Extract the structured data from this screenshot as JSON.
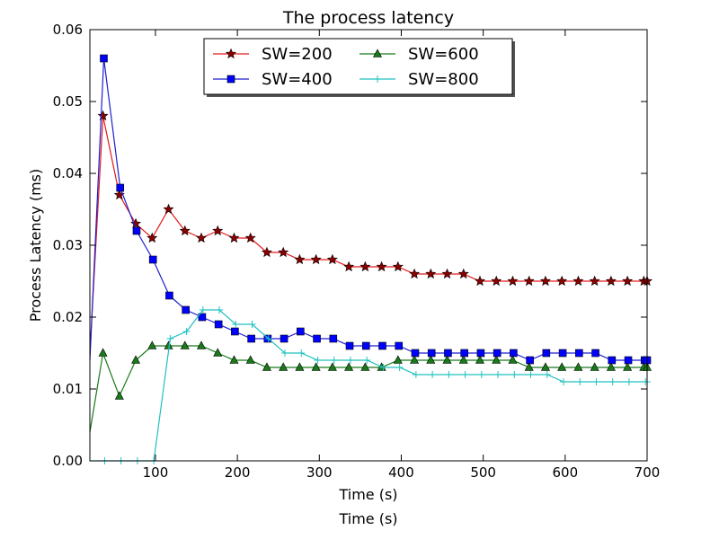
{
  "chart_data": {
    "type": "line",
    "title": "The process latency",
    "xlabel": "Time (s)",
    "ylabel": "Process Latency (ms)",
    "footer_text": "Time (s)",
    "xlim": [
      20,
      700
    ],
    "ylim": [
      0,
      0.06
    ],
    "x_ticks": [
      100,
      200,
      300,
      400,
      500,
      600,
      700
    ],
    "x_tick_labels": [
      "100",
      "200",
      "300",
      "400",
      "500",
      "600",
      "700"
    ],
    "y_ticks": [
      0,
      0.01,
      0.02,
      0.03,
      0.04,
      0.05,
      0.06
    ],
    "y_tick_labels": [
      "0.00",
      "0.01",
      "0.02",
      "0.03",
      "0.04",
      "0.05",
      "0.06"
    ],
    "grid": false,
    "legend_position": "top-center",
    "series": [
      {
        "name": "SW=200",
        "color": "#e41a1c",
        "marker_fill": "#8b0000",
        "marker": "star",
        "x": [
          20,
          36,
          56,
          76,
          96,
          116,
          136,
          156,
          176,
          196,
          216,
          236,
          256,
          276,
          296,
          316,
          336,
          356,
          376,
          396,
          416,
          436,
          456,
          476,
          496,
          516,
          536,
          556,
          576,
          596,
          616,
          636,
          656,
          676,
          696,
          700
        ],
        "y": [
          0.015,
          0.048,
          0.037,
          0.033,
          0.031,
          0.035,
          0.032,
          0.031,
          0.032,
          0.031,
          0.031,
          0.029,
          0.029,
          0.028,
          0.028,
          0.028,
          0.027,
          0.027,
          0.027,
          0.027,
          0.026,
          0.026,
          0.026,
          0.026,
          0.025,
          0.025,
          0.025,
          0.025,
          0.025,
          0.025,
          0.025,
          0.025,
          0.025,
          0.025,
          0.025,
          0.025
        ]
      },
      {
        "name": "SW=400",
        "color": "#1f1fd1",
        "marker_fill": "#0000ff",
        "marker": "square",
        "x": [
          20,
          37,
          57,
          77,
          97,
          117,
          137,
          157,
          177,
          197,
          217,
          237,
          257,
          277,
          297,
          317,
          337,
          357,
          377,
          397,
          417,
          437,
          457,
          477,
          497,
          517,
          537,
          557,
          577,
          597,
          617,
          637,
          657,
          677,
          697,
          700
        ],
        "y": [
          0.014,
          0.056,
          0.038,
          0.032,
          0.028,
          0.023,
          0.021,
          0.02,
          0.019,
          0.018,
          0.017,
          0.017,
          0.017,
          0.018,
          0.017,
          0.017,
          0.016,
          0.016,
          0.016,
          0.016,
          0.015,
          0.015,
          0.015,
          0.015,
          0.015,
          0.015,
          0.015,
          0.014,
          0.015,
          0.015,
          0.015,
          0.015,
          0.014,
          0.014,
          0.014,
          0.014
        ]
      },
      {
        "name": "SW=600",
        "color": "#1a7a1a",
        "marker_fill": "#1a7a1a",
        "marker": "triangle",
        "x": [
          20,
          36,
          56,
          76,
          96,
          116,
          136,
          156,
          176,
          196,
          216,
          236,
          256,
          276,
          296,
          316,
          336,
          356,
          376,
          396,
          416,
          436,
          456,
          476,
          496,
          516,
          536,
          556,
          576,
          596,
          616,
          636,
          656,
          676,
          696,
          700
        ],
        "y": [
          0.004,
          0.015,
          0.009,
          0.014,
          0.016,
          0.016,
          0.016,
          0.016,
          0.015,
          0.014,
          0.014,
          0.013,
          0.013,
          0.013,
          0.013,
          0.013,
          0.013,
          0.013,
          0.013,
          0.014,
          0.014,
          0.014,
          0.014,
          0.014,
          0.014,
          0.014,
          0.014,
          0.013,
          0.013,
          0.013,
          0.013,
          0.013,
          0.013,
          0.013,
          0.013,
          0.013
        ]
      },
      {
        "name": "SW=800",
        "color": "#20c0c0",
        "marker_fill": "#20c0c0",
        "marker": "plus",
        "x": [
          20,
          38,
          58,
          78,
          98,
          118,
          138,
          158,
          178,
          198,
          218,
          238,
          258,
          278,
          298,
          318,
          338,
          358,
          378,
          398,
          418,
          438,
          458,
          478,
          498,
          518,
          538,
          558,
          578,
          598,
          618,
          638,
          658,
          678,
          698,
          700
        ],
        "y": [
          0,
          0,
          0,
          0,
          0,
          0.017,
          0.018,
          0.021,
          0.021,
          0.019,
          0.019,
          0.017,
          0.015,
          0.015,
          0.014,
          0.014,
          0.014,
          0.014,
          0.013,
          0.013,
          0.012,
          0.012,
          0.012,
          0.012,
          0.012,
          0.012,
          0.012,
          0.012,
          0.012,
          0.011,
          0.011,
          0.011,
          0.011,
          0.011,
          0.011,
          0.011
        ]
      }
    ]
  }
}
